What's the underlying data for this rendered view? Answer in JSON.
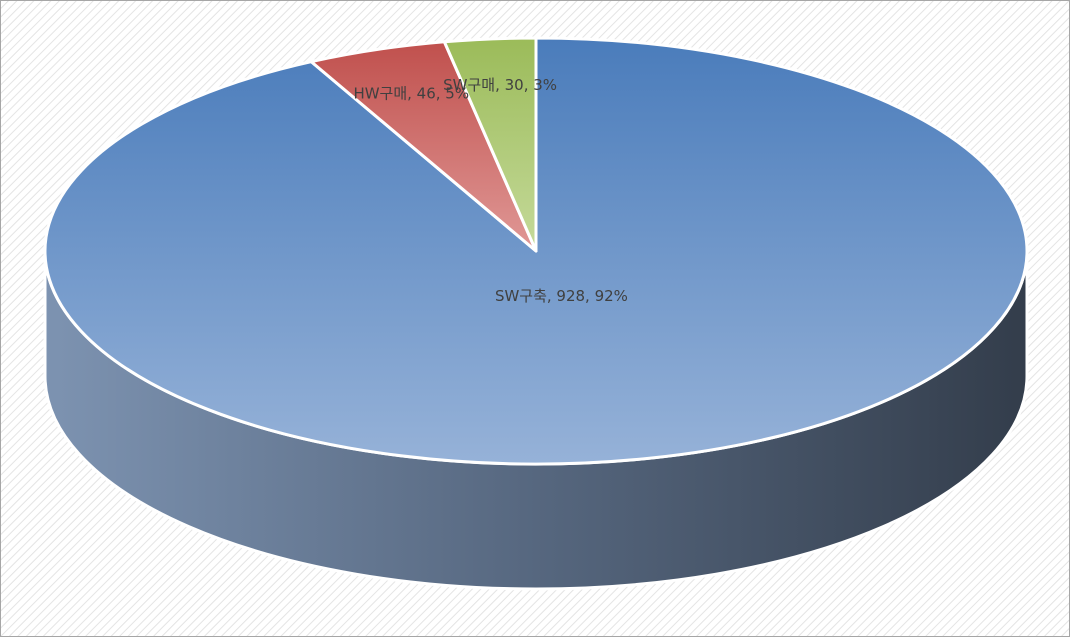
{
  "chart_data": {
    "type": "pie3d",
    "categories": [
      "SW구축",
      "HW구매",
      "SW구매"
    ],
    "values": [
      928,
      46,
      30
    ],
    "value_labels": [
      "SW구축, 928, 92%",
      "HW구매, 46, 5%",
      "SW구매, 30, 3%"
    ],
    "colors": [
      "#4f81bd",
      "#c0504d",
      "#9bbb59"
    ]
  }
}
